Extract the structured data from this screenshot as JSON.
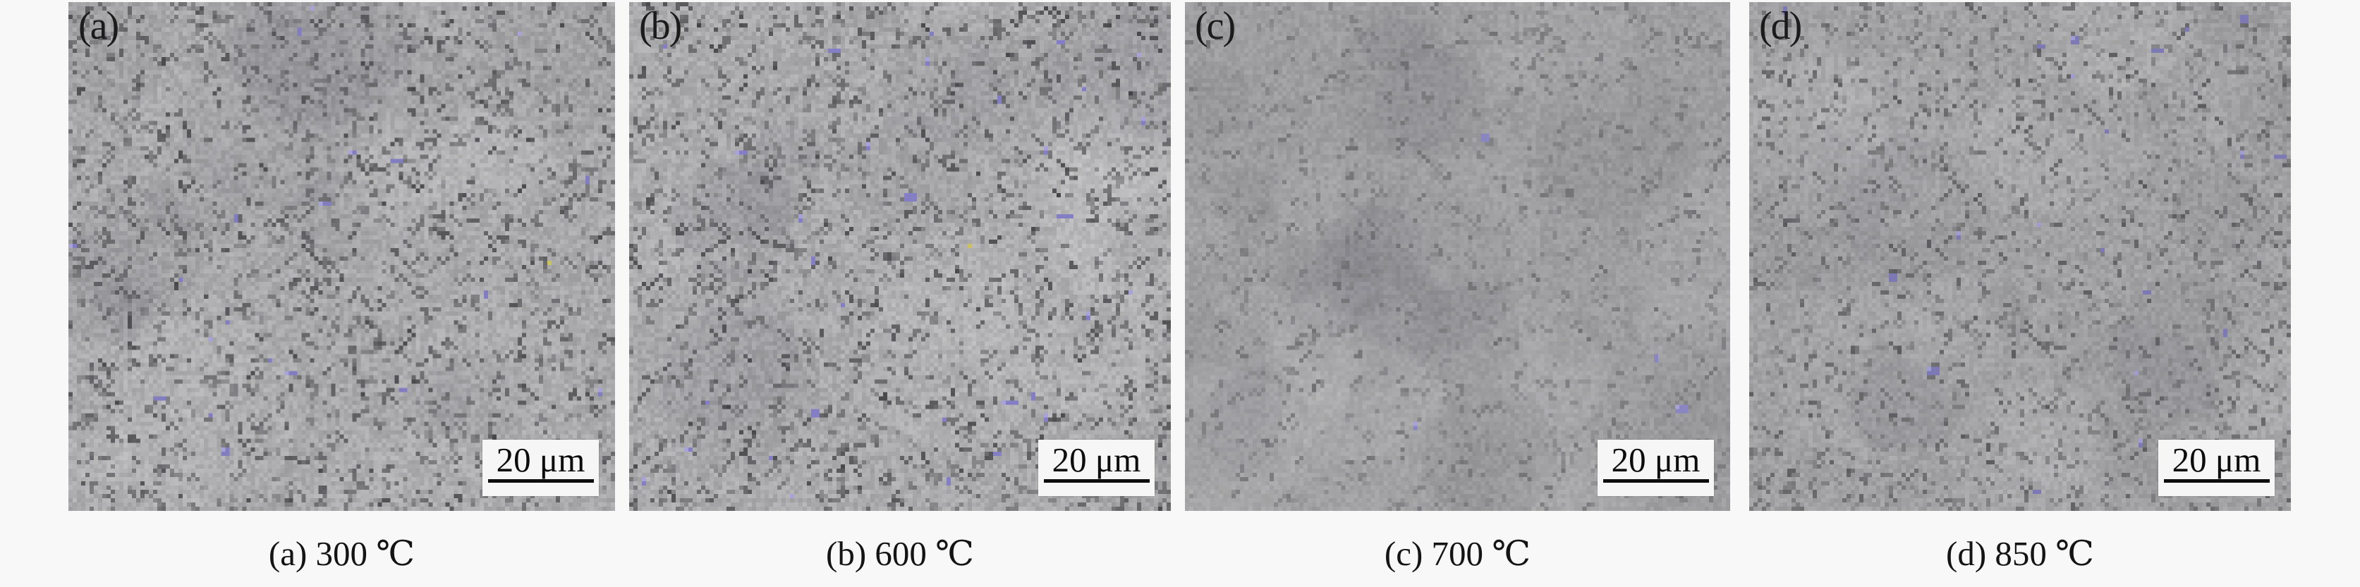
{
  "figure": {
    "panels": [
      {
        "id": "a",
        "corner_label": "(a)",
        "caption": "(a) 300 ℃",
        "scale_label": "20 μm",
        "texture": {
          "seed": 101,
          "base": 169,
          "grain": 14,
          "patches": 28,
          "blobs": 1450,
          "darkMin": 42,
          "darkVar": 58,
          "steps": 3,
          "purple": 22,
          "yellow": 1,
          "purpleColor": "#817dbe",
          "purpleLight": "#a7a3d8",
          "yellowColor": "#c9c25f"
        }
      },
      {
        "id": "b",
        "corner_label": "(b)",
        "caption": "(b) 600 ℃",
        "scale_label": "20 μm",
        "texture": {
          "seed": 202,
          "base": 171,
          "grain": 14,
          "patches": 28,
          "blobs": 1400,
          "darkMin": 45,
          "darkVar": 60,
          "steps": 3,
          "purple": 32,
          "yellow": 1,
          "purpleColor": "#847fc4",
          "purpleLight": "#a7a3d8",
          "yellowColor": "#c9c25f"
        }
      },
      {
        "id": "c",
        "corner_label": "(c)",
        "caption": "(c) 700 ℃",
        "scale_label": "20 μm",
        "texture": {
          "seed": 303,
          "base": 158,
          "grain": 9,
          "patches": 36,
          "blobs": 820,
          "darkMin": 16,
          "darkVar": 34,
          "steps": 3,
          "purple": 4,
          "yellow": 0,
          "purpleColor": "#8a86c2",
          "purpleLight": "#a7a3d8",
          "yellowColor": "#c9c25f"
        }
      },
      {
        "id": "d",
        "corner_label": "(d)",
        "caption": "(d) 850 ℃",
        "scale_label": "20 μm",
        "texture": {
          "seed": 404,
          "base": 161,
          "grain": 11,
          "patches": 32,
          "blobs": 1420,
          "darkMin": 30,
          "darkVar": 46,
          "steps": 2,
          "purple": 20,
          "yellow": 0,
          "purpleColor": "#7d79b5",
          "purpleLight": "#a09ccf",
          "yellowColor": "#c9c25f"
        }
      }
    ],
    "colors": {
      "page_background": "#f8f8f8",
      "caption_text": "#141414",
      "corner_label_text": "#1b1b1b",
      "scale_box_background": "#f6f6f6",
      "scale_bar_line": "#0d0d0d",
      "micrograph_base_gray": "#a9a9a9",
      "particle_purple": "#817dbe"
    }
  }
}
